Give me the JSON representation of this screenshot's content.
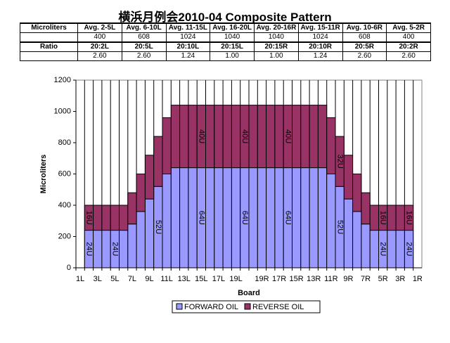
{
  "title": "横浜月例会2010-04 Composite Pattern",
  "table": {
    "rows": [
      {
        "label": "Microliters",
        "cells": [
          "Avg. 2-5L",
          "Avg. 6-10L",
          "Avg. 11-15L",
          "Avg. 16-20L",
          "Avg. 20-16R",
          "Avg. 15-11R",
          "Avg. 10-6R",
          "Avg. 5-2R"
        ]
      },
      {
        "cells": [
          "400",
          "608",
          "1024",
          "1040",
          "1040",
          "1024",
          "608",
          "400"
        ]
      },
      {
        "label": "Ratio",
        "cells": [
          "20:2L",
          "20:5L",
          "20:10L",
          "20:15L",
          "20:15R",
          "20:10R",
          "20:5R",
          "20:2R"
        ]
      },
      {
        "cells": [
          "2.60",
          "2.60",
          "1.24",
          "1.00",
          "1.00",
          "1.24",
          "2.60",
          "2.60"
        ]
      }
    ]
  },
  "chart_data": {
    "type": "stacked_bar",
    "xlabel": "Board",
    "ylabel": "Microliters",
    "categories": [
      "1L",
      null,
      "3L",
      null,
      "5L",
      null,
      "7L",
      null,
      "9L",
      null,
      "11L",
      null,
      "13L",
      null,
      "15L",
      null,
      "17L",
      null,
      "19L",
      null,
      null,
      "19R",
      null,
      "17R",
      null,
      "15R",
      null,
      "13R",
      null,
      "11R",
      null,
      "9R",
      null,
      "7R",
      null,
      "5R",
      null,
      "3R",
      null,
      "1R"
    ],
    "series": [
      {
        "name": "FORWARD OIL",
        "color": "#9999ff",
        "values": [
          0,
          240,
          240,
          240,
          240,
          240,
          280,
          360,
          440,
          520,
          600,
          640,
          640,
          640,
          640,
          640,
          640,
          640,
          640,
          640,
          640,
          640,
          640,
          640,
          640,
          640,
          640,
          640,
          640,
          600,
          520,
          440,
          360,
          280,
          240,
          240,
          240,
          240,
          240,
          0
        ],
        "value_labels": [
          null,
          "24U",
          null,
          null,
          "24U",
          null,
          null,
          null,
          null,
          "52U",
          null,
          null,
          null,
          null,
          "64U",
          null,
          null,
          null,
          null,
          "64U",
          null,
          null,
          null,
          null,
          "64U",
          null,
          null,
          null,
          null,
          null,
          "52U",
          null,
          null,
          null,
          null,
          "24U",
          null,
          null,
          "24U",
          null
        ]
      },
      {
        "name": "REVERSE OIL",
        "color": "#993366",
        "values": [
          0,
          160,
          160,
          160,
          160,
          160,
          200,
          240,
          280,
          320,
          360,
          400,
          400,
          400,
          400,
          400,
          400,
          400,
          400,
          400,
          400,
          400,
          400,
          400,
          400,
          400,
          400,
          400,
          400,
          360,
          320,
          280,
          240,
          200,
          160,
          160,
          160,
          160,
          160,
          0
        ],
        "value_labels": [
          null,
          "16U",
          null,
          null,
          null,
          null,
          null,
          null,
          null,
          null,
          null,
          null,
          null,
          null,
          "40U",
          null,
          null,
          null,
          null,
          "40U",
          null,
          null,
          null,
          null,
          "40U",
          null,
          null,
          null,
          null,
          null,
          "32U",
          null,
          null,
          null,
          null,
          "16U",
          null,
          null,
          "16U",
          null
        ]
      }
    ],
    "ylim": [
      0,
      1200
    ],
    "yticks": [
      0,
      200,
      400,
      600,
      800,
      1000,
      1200
    ],
    "grid": "x",
    "legend": "bottom"
  }
}
